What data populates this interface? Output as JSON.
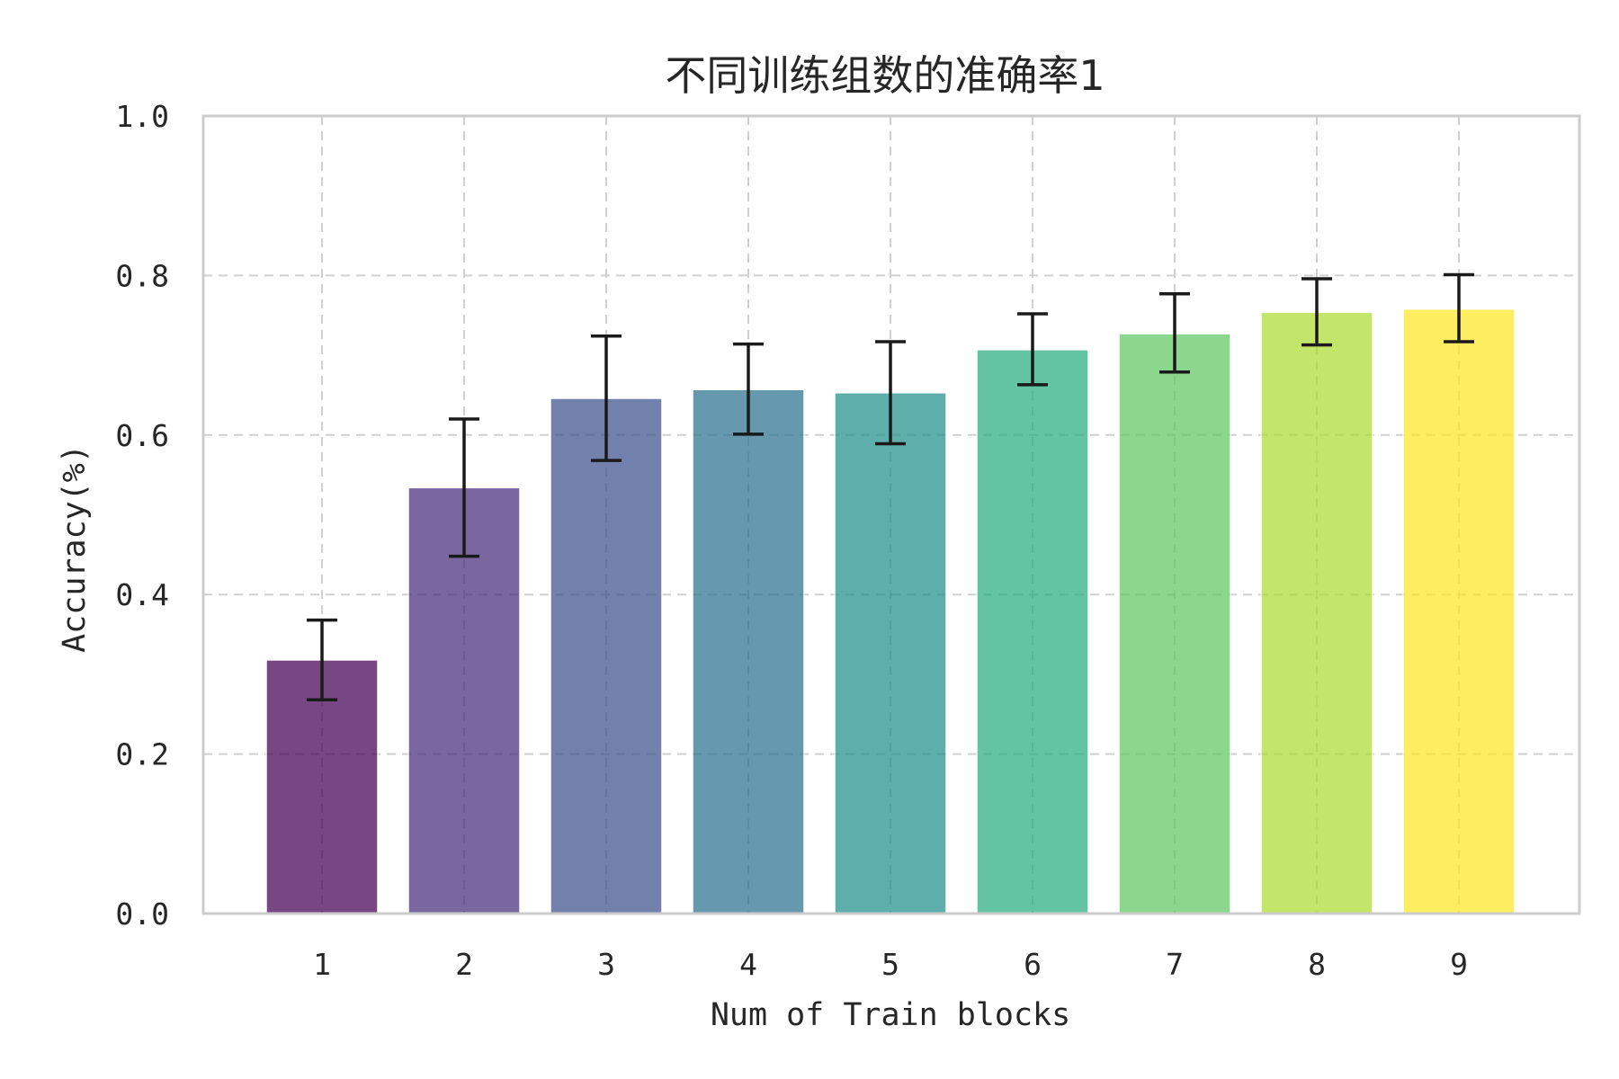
{
  "chart_data": {
    "type": "bar",
    "title": "不同训练组数的准确率1",
    "xlabel": "Num of Train blocks",
    "ylabel": "Accuracy(%)",
    "categories": [
      "1",
      "2",
      "3",
      "4",
      "5",
      "6",
      "7",
      "8",
      "9"
    ],
    "values": [
      0.318,
      0.534,
      0.646,
      0.657,
      0.653,
      0.707,
      0.727,
      0.754,
      0.758
    ],
    "error_lower": [
      0.268,
      0.448,
      0.568,
      0.601,
      0.589,
      0.663,
      0.679,
      0.713,
      0.717
    ],
    "error_upper": [
      0.368,
      0.62,
      0.724,
      0.714,
      0.717,
      0.752,
      0.777,
      0.796,
      0.801
    ],
    "colors": [
      "#440154",
      "#472d7b",
      "#3b528b",
      "#2c728e",
      "#21918c",
      "#28ae80",
      "#5ec962",
      "#addc30",
      "#fde725"
    ],
    "ylim": [
      0.0,
      1.0
    ],
    "yticks": [
      "0.0",
      "0.2",
      "0.4",
      "0.6",
      "0.8",
      "1.0"
    ],
    "grid": true,
    "legend": null
  }
}
